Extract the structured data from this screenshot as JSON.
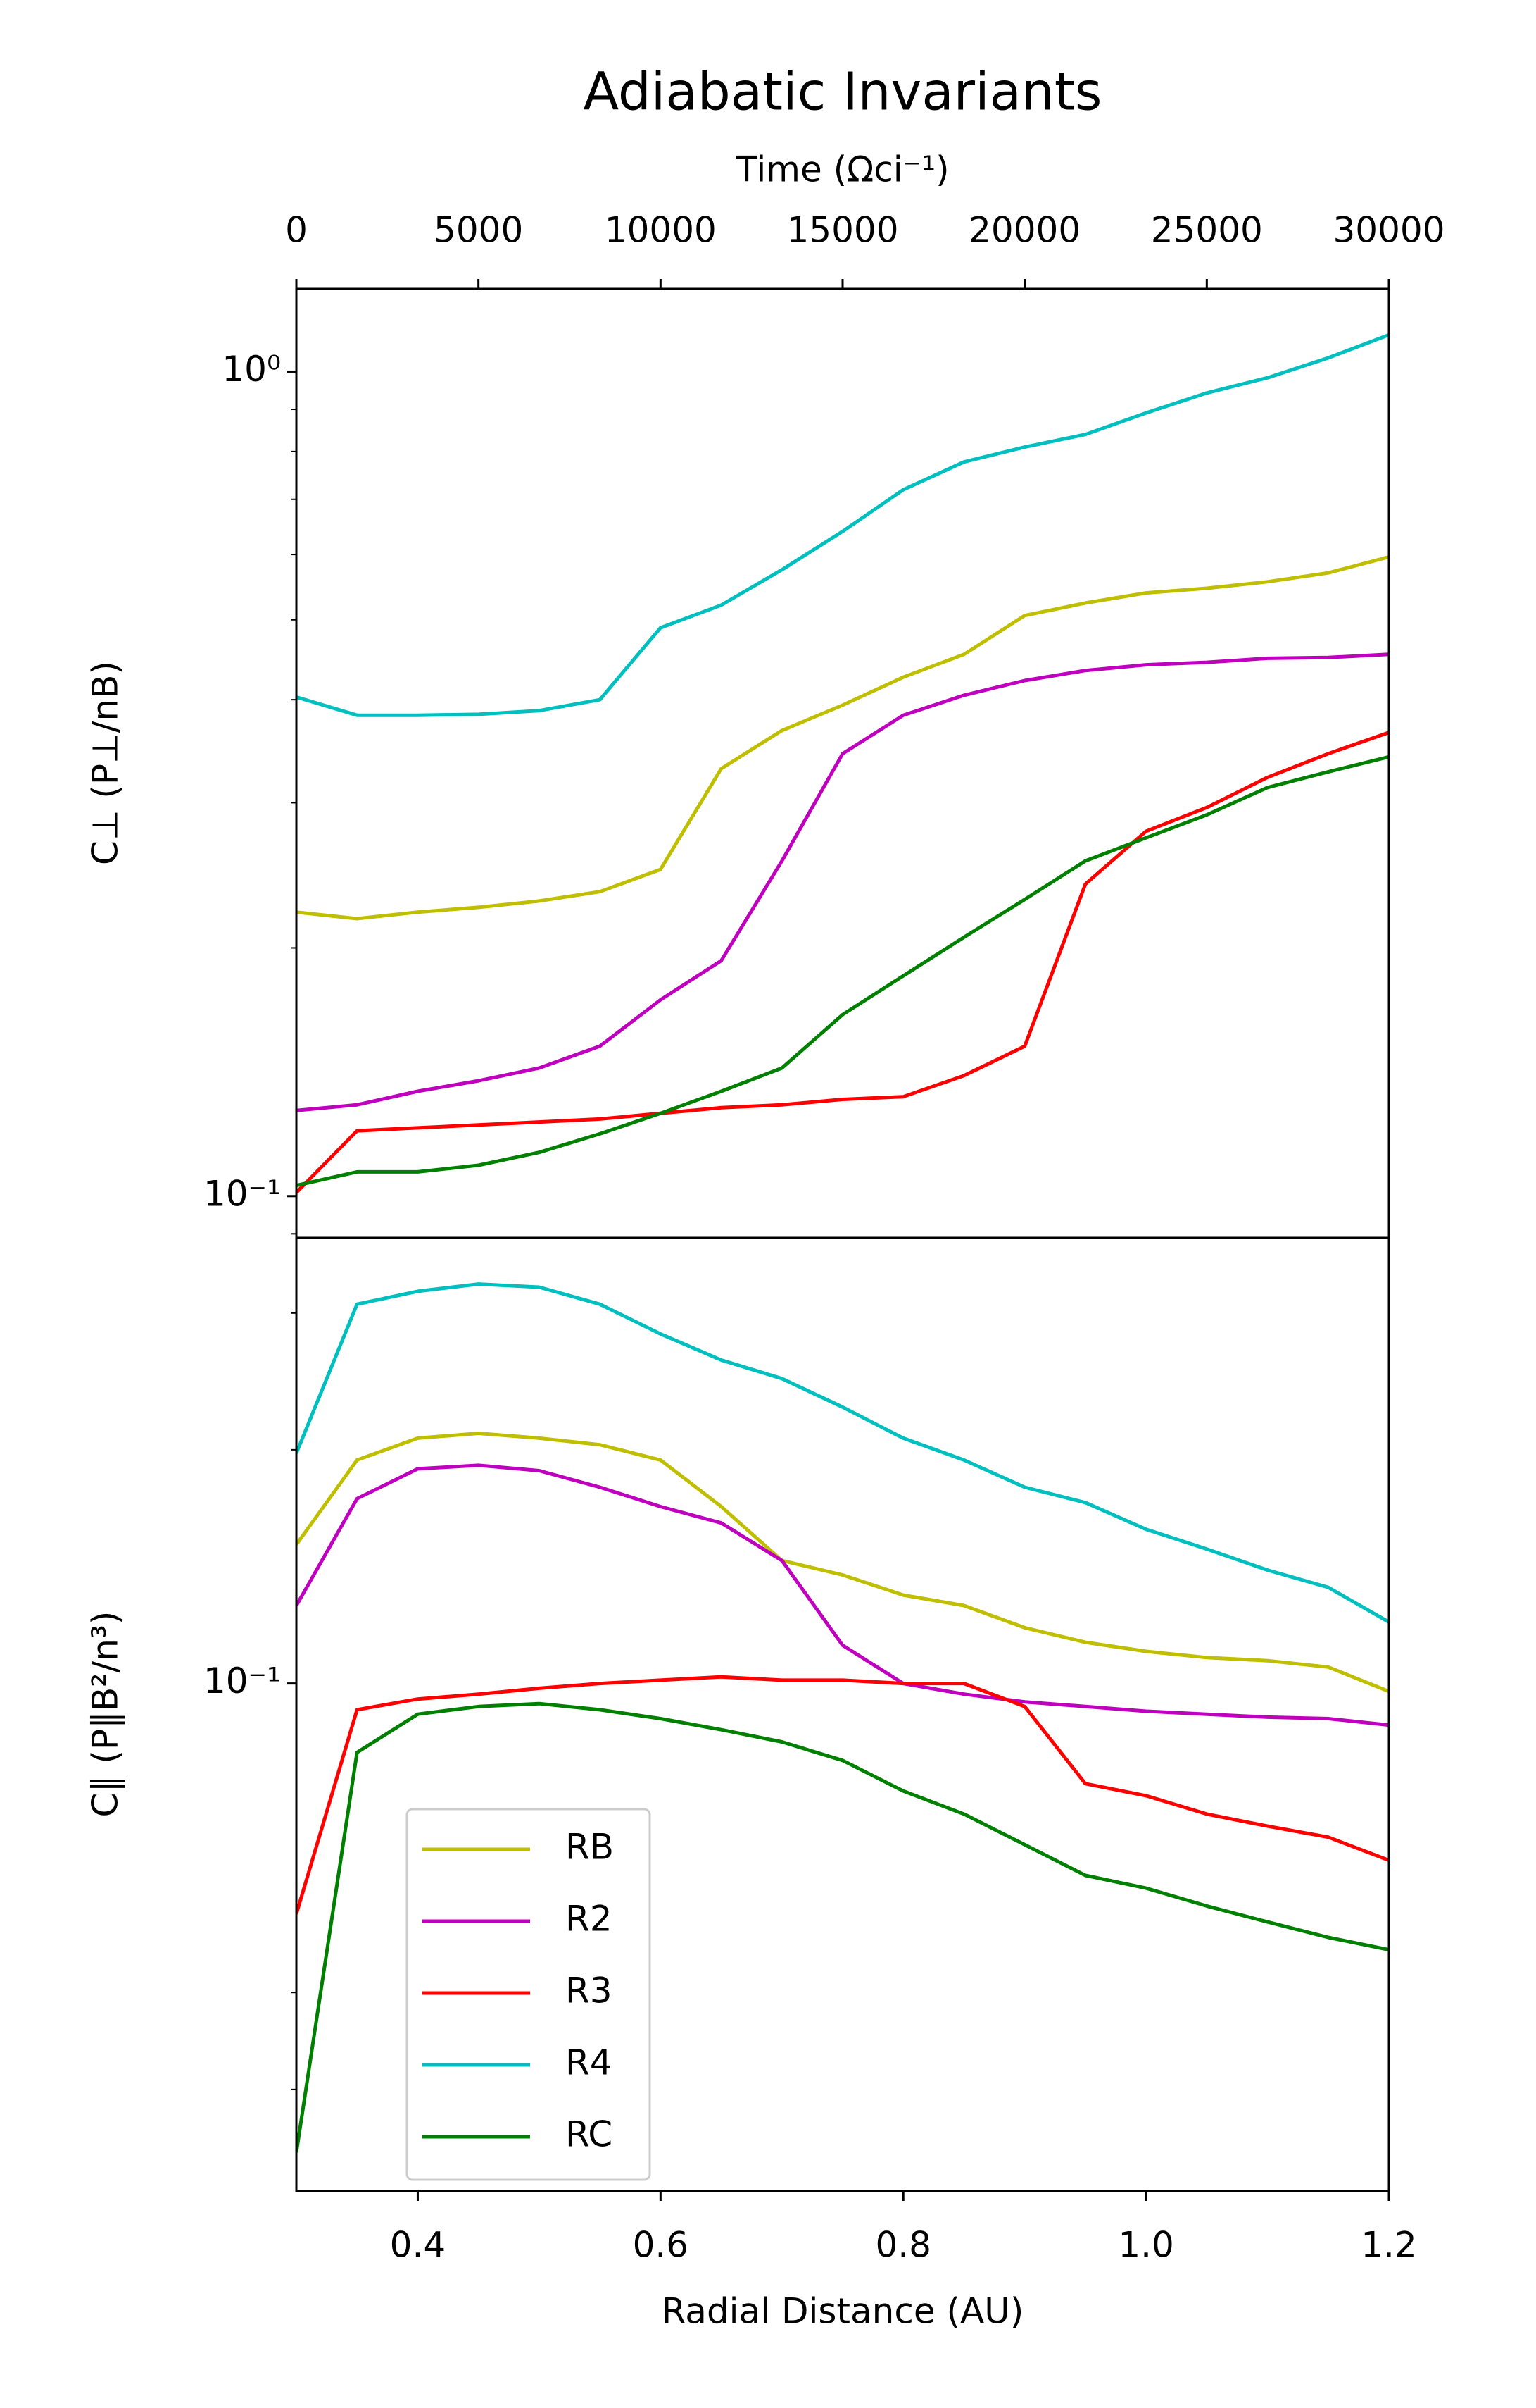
{
  "chart_data": [
    {
      "type": "line",
      "title": "Adiabatic Invariants",
      "x2label": "Time (Ωci⁻¹)",
      "ylabel": "C⊥ (P⊥/nB)",
      "yscale": "log",
      "xlim": [
        0.3,
        1.2
      ],
      "x2lim": [
        0,
        30000
      ],
      "x2ticks": [
        0,
        5000,
        10000,
        15000,
        20000,
        25000,
        30000
      ],
      "ylim": [
        0.089,
        1.26
      ],
      "yticks": [
        {
          "value": 0.1,
          "label": "10⁻¹"
        },
        {
          "value": 1,
          "label": "10⁰"
        }
      ],
      "yticks_minor": [
        0.09,
        0.2,
        0.3,
        0.4,
        0.5,
        0.6,
        0.7,
        0.8,
        0.9
      ],
      "x": [
        0.3,
        0.35,
        0.4,
        0.45,
        0.5,
        0.55,
        0.6,
        0.65,
        0.7,
        0.75,
        0.8,
        0.85,
        0.9,
        0.95,
        1.0,
        1.05,
        1.1,
        1.15,
        1.2
      ],
      "series": [
        {
          "name": "RB",
          "color": "#bfbf00",
          "values": [
            0.221,
            0.217,
            0.221,
            0.224,
            0.228,
            0.234,
            0.249,
            0.33,
            0.367,
            0.394,
            0.426,
            0.454,
            0.506,
            0.524,
            0.539,
            0.546,
            0.556,
            0.57,
            0.596
          ]
        },
        {
          "name": "R2",
          "color": "#bf00bf",
          "values": [
            0.127,
            0.129,
            0.134,
            0.138,
            0.143,
            0.152,
            0.173,
            0.193,
            0.255,
            0.344,
            0.383,
            0.405,
            0.422,
            0.434,
            0.441,
            0.444,
            0.449,
            0.45,
            0.454
          ]
        },
        {
          "name": "R3",
          "color": "#ff0000",
          "values": [
            0.101,
            0.12,
            0.121,
            0.122,
            0.123,
            0.124,
            0.126,
            0.128,
            0.129,
            0.131,
            0.132,
            0.14,
            0.152,
            0.239,
            0.277,
            0.296,
            0.322,
            0.344,
            0.365
          ]
        },
        {
          "name": "R4",
          "color": "#00bfbf",
          "values": [
            0.403,
            0.383,
            0.383,
            0.384,
            0.388,
            0.4,
            0.489,
            0.521,
            0.575,
            0.64,
            0.719,
            0.777,
            0.81,
            0.839,
            0.891,
            0.942,
            0.983,
            1.039,
            1.108
          ]
        },
        {
          "name": "RC",
          "color": "#008000",
          "values": [
            0.103,
            0.107,
            0.107,
            0.109,
            0.113,
            0.119,
            0.126,
            0.134,
            0.143,
            0.166,
            0.185,
            0.206,
            0.229,
            0.255,
            0.272,
            0.29,
            0.313,
            0.327,
            0.341
          ]
        }
      ]
    },
    {
      "type": "line",
      "xlabel": "Radial Distance (AU)",
      "ylabel": "C∥ (P∥B²/n³)",
      "yscale": "log",
      "xlim": [
        0.3,
        1.2
      ],
      "xticks": [
        0.4,
        0.6,
        0.8,
        {
          "value": 1,
          "label": "1.0"
        },
        1.2
      ],
      "ylim": [
        0.0222,
        0.375
      ],
      "yticks": [
        {
          "value": 0.1,
          "label": "10⁻¹"
        }
      ],
      "yticks_minor": [
        0.03,
        0.04,
        0.2,
        0.3
      ],
      "legend": "lower left",
      "x": [
        0.3,
        0.35,
        0.4,
        0.45,
        0.5,
        0.55,
        0.6,
        0.65,
        0.7,
        0.75,
        0.8,
        0.85,
        0.9,
        0.95,
        1.0,
        1.05,
        1.1,
        1.15,
        1.2
      ],
      "series": [
        {
          "name": "RB",
          "color": "#bfbf00",
          "values": [
            0.151,
            0.194,
            0.207,
            0.21,
            0.207,
            0.203,
            0.194,
            0.169,
            0.144,
            0.138,
            0.13,
            0.126,
            0.118,
            0.113,
            0.11,
            0.108,
            0.107,
            0.105,
            0.0977
          ]
        },
        {
          "name": "R2",
          "color": "#bf00bf",
          "values": [
            0.126,
            0.173,
            0.189,
            0.191,
            0.188,
            0.179,
            0.169,
            0.161,
            0.144,
            0.112,
            0.1,
            0.0969,
            0.0947,
            0.0934,
            0.0921,
            0.0913,
            0.0905,
            0.0901,
            0.0884
          ]
        },
        {
          "name": "R3",
          "color": "#ff0000",
          "values": [
            0.0505,
            0.0925,
            0.0955,
            0.0969,
            0.0986,
            0.1,
            0.101,
            0.102,
            0.101,
            0.101,
            0.1,
            0.1,
            0.0934,
            0.0743,
            0.0717,
            0.0679,
            0.0655,
            0.0634,
            0.0592
          ]
        },
        {
          "name": "R4",
          "color": "#00bfbf",
          "values": [
            0.198,
            0.308,
            0.32,
            0.327,
            0.324,
            0.308,
            0.282,
            0.261,
            0.247,
            0.227,
            0.207,
            0.194,
            0.179,
            0.171,
            0.158,
            0.149,
            0.14,
            0.133,
            0.12
          ]
        },
        {
          "name": "RC",
          "color": "#008000",
          "values": [
            0.0249,
            0.0815,
            0.0913,
            0.0934,
            0.0942,
            0.0925,
            0.0901,
            0.0872,
            0.0841,
            0.0796,
            0.0727,
            0.0679,
            0.062,
            0.0566,
            0.0545,
            0.0517,
            0.0493,
            0.0471,
            0.0454
          ]
        }
      ]
    }
  ]
}
